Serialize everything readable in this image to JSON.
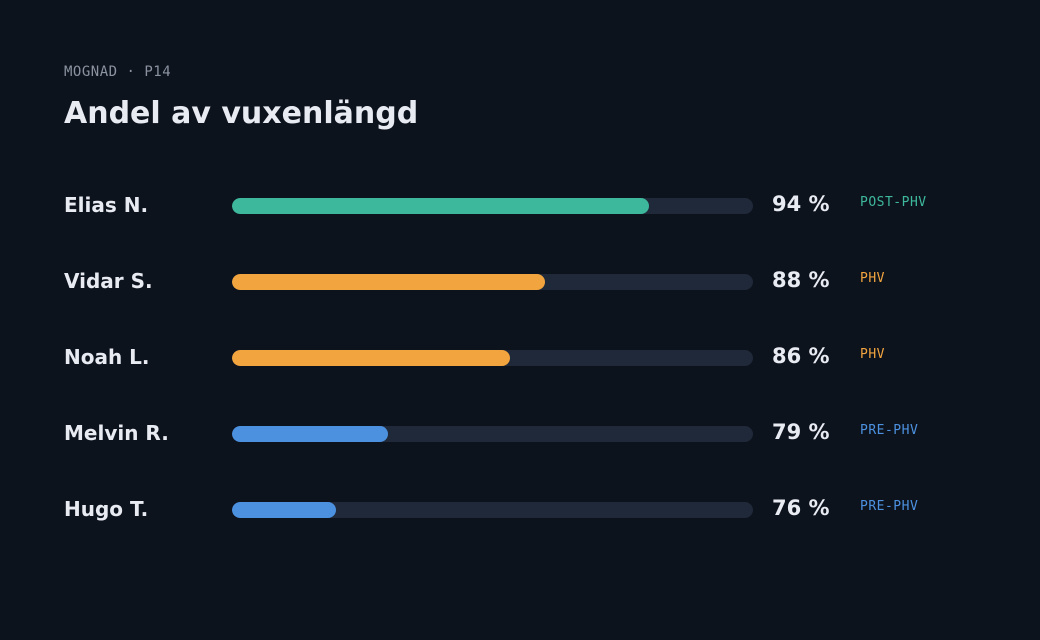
{
  "header": {
    "overline": "MOGNAD · P14",
    "title": "Andel av vuxenlängd"
  },
  "colors": {
    "background": "#0d131d",
    "track": "#1f2939",
    "POST-PHV": "#3db89c",
    "PHV": "#f2a43e",
    "PRE-PHV": "#4c91e0"
  },
  "chart_data": {
    "type": "bar",
    "orientation": "horizontal",
    "title": "Andel av vuxenlängd",
    "xlabel": "",
    "ylabel": "",
    "unit": "%",
    "grid": false,
    "scale_min": 70,
    "scale_max": 100,
    "categories": [
      "Elias N.",
      "Vidar S.",
      "Noah L.",
      "Melvin R.",
      "Hugo T."
    ],
    "values": [
      94,
      88,
      86,
      79,
      76
    ],
    "value_labels": [
      "94 %",
      "88 %",
      "86 %",
      "79 %",
      "76 %"
    ],
    "phases": [
      "POST-PHV",
      "PHV",
      "PHV",
      "PRE-PHV",
      "PRE-PHV"
    ]
  }
}
